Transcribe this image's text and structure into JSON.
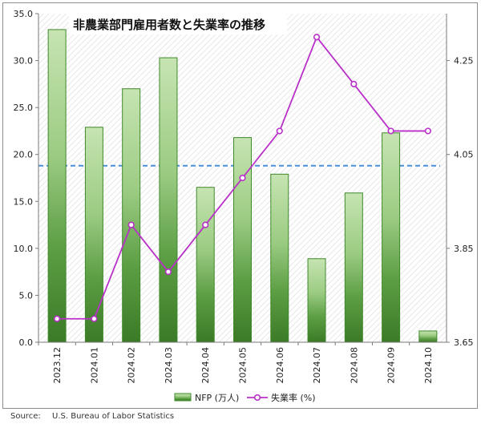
{
  "chart_data": {
    "type": "bar",
    "title": "非農業部門雇用者数と失業率の推移",
    "categories": [
      "2023.12",
      "2024.01",
      "2024.02",
      "2024.03",
      "2024.04",
      "2024.05",
      "2024.06",
      "2024.07",
      "2024.08",
      "2024.09",
      "2024.10"
    ],
    "series": [
      {
        "name": "NFP (万人)",
        "type": "bar",
        "axis": "left",
        "color": "#4f9a3a",
        "values": [
          33.3,
          22.9,
          27.0,
          30.3,
          16.5,
          21.8,
          17.9,
          8.9,
          15.9,
          22.3,
          1.2
        ]
      },
      {
        "name": "失業率 (%)",
        "type": "line",
        "axis": "right",
        "color": "#b830c8",
        "values": [
          3.7,
          3.7,
          3.9,
          3.8,
          3.9,
          4.0,
          4.1,
          4.3,
          4.2,
          4.1,
          4.1
        ]
      }
    ],
    "y_left": {
      "ticks": [
        "0.0",
        "5.0",
        "10.0",
        "15.0",
        "20.0",
        "25.0",
        "30.0",
        "35.0"
      ],
      "range": [
        0,
        35
      ]
    },
    "y_right": {
      "ticks": [
        "3.65",
        "3.85",
        "4.05",
        "4.25"
      ],
      "range": [
        3.65,
        4.35
      ]
    },
    "reference_line": {
      "value": 18.8,
      "axis": "left",
      "style": "dashed",
      "color": "#4a90d9"
    },
    "grid": false,
    "background": "diagonal hatch",
    "legend_position": "bottom"
  },
  "source": {
    "label": "Source:",
    "text": "U.S. Bureau of Labor Statistics"
  }
}
